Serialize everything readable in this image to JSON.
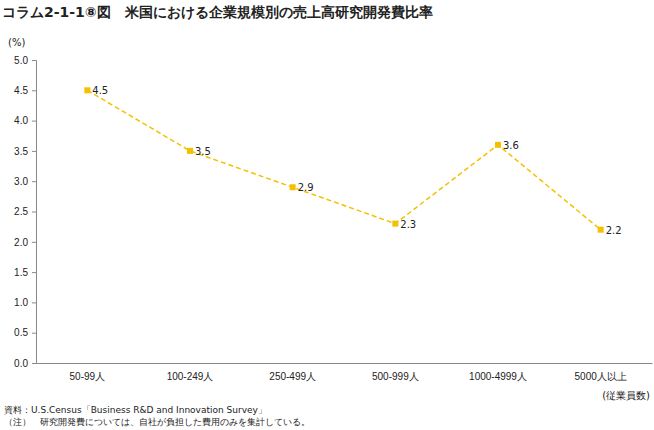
{
  "chart_data": {
    "type": "line",
    "title": "コラム2-1-1⑧図　米国における企業規模別の売上高研究開発費比率",
    "y_label": "(%)",
    "x_label": "(従業員数)",
    "notes": [
      "資料：U.S.Census「Business R&D and Innovation Survey」",
      "（注）　研究開発費については、自社が負担した費用のみを集計している。"
    ],
    "categories": [
      "50-99人",
      "100-249人",
      "250-499人",
      "500-999人",
      "1000-4999人",
      "5000人以上"
    ],
    "values": [
      4.5,
      3.5,
      2.9,
      2.3,
      3.6,
      2.2
    ],
    "color": "#f5c000",
    "marker": "square",
    "line_style": "dashed",
    "data_labels": true,
    "grid": false,
    "ylim": [
      0,
      5
    ],
    "yticks": [
      {
        "value": 0,
        "label": "0.0"
      },
      0.5,
      {
        "value": 1,
        "label": "1.0"
      },
      1.5,
      {
        "value": 2,
        "label": "2.0"
      },
      2.5,
      {
        "value": 3,
        "label": "3.0"
      },
      3.5,
      {
        "value": 4,
        "label": "4.0"
      },
      4.5,
      {
        "value": 5,
        "label": "5.0"
      }
    ]
  }
}
